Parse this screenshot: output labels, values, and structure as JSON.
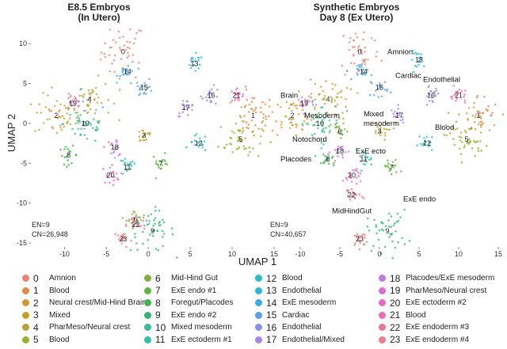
{
  "chart_data": [
    {
      "type": "scatter",
      "title": "E8.5 Embryos",
      "subtitle": "(In Utero)",
      "xlabel": "UMAP 1",
      "ylabel": "UMAP 2",
      "xlim": [
        -14,
        15
      ],
      "ylim": [
        -15.5,
        12.5
      ],
      "xticks": [
        -10,
        -5,
        0,
        5,
        10,
        15
      ],
      "yticks": [
        10,
        5,
        0,
        -5,
        -10,
        -15
      ],
      "stats": [
        "EN=9",
        "CN=26,948"
      ],
      "clusters": [
        {
          "id": 0,
          "x": -3.0,
          "y": 9.0
        },
        {
          "id": 1,
          "x": 12.5,
          "y": 1.0
        },
        {
          "id": 2,
          "x": -11.0,
          "y": 1.0
        },
        {
          "id": 3,
          "x": -0.5,
          "y": -1.5
        },
        {
          "id": 4,
          "x": -7.0,
          "y": 3.0
        },
        {
          "id": 5,
          "x": 11.0,
          "y": -2.0
        },
        {
          "id": 6,
          "x": -1.5,
          "y": -12.0
        },
        {
          "id": 7,
          "x": 1.5,
          "y": -5.0
        },
        {
          "id": 8,
          "x": -9.5,
          "y": -4.0
        },
        {
          "id": 9,
          "x": 0.5,
          "y": -13.5
        },
        {
          "id": 10,
          "x": -7.5,
          "y": 0.0
        },
        {
          "id": 11,
          "x": -2.5,
          "y": -5.5
        },
        {
          "id": 12,
          "x": 6.0,
          "y": -2.5
        },
        {
          "id": 13,
          "x": 5.5,
          "y": 7.5
        },
        {
          "id": 14,
          "x": -2.5,
          "y": 6.5
        },
        {
          "id": 15,
          "x": -0.5,
          "y": 4.5
        },
        {
          "id": 16,
          "x": 7.5,
          "y": 3.5
        },
        {
          "id": 17,
          "x": 4.5,
          "y": 2.0
        },
        {
          "id": 18,
          "x": -4.0,
          "y": -3.0
        },
        {
          "id": 19,
          "x": -9.0,
          "y": 2.5
        },
        {
          "id": 20,
          "x": -4.5,
          "y": -6.5
        },
        {
          "id": 21,
          "x": 10.5,
          "y": 3.5
        },
        {
          "id": 22,
          "x": -1.5,
          "y": -12.7
        },
        {
          "id": 23,
          "x": -3.0,
          "y": -14.5
        }
      ],
      "annotations": []
    },
    {
      "type": "scatter",
      "title": "Synthetic Embryos",
      "subtitle": "Day 8 (Ex Utero)",
      "xlabel": "UMAP 1",
      "ylabel": "",
      "xlim": [
        -14,
        15
      ],
      "ylim": [
        -15.5,
        12.5
      ],
      "xticks": [
        -10,
        -5,
        0,
        5,
        10,
        15
      ],
      "yticks": [],
      "stats": [
        "EN=9",
        "CN=40,657"
      ],
      "clusters": [
        {
          "id": 0,
          "x": -2.5,
          "y": 9.0
        },
        {
          "id": 1,
          "x": 12.5,
          "y": 1.0
        },
        {
          "id": 2,
          "x": -11.0,
          "y": 1.0
        },
        {
          "id": 3,
          "x": 0.0,
          "y": -1.0
        },
        {
          "id": 4,
          "x": -6.5,
          "y": 3.0
        },
        {
          "id": 5,
          "x": 11.0,
          "y": -2.0
        },
        {
          "id": 6,
          "x": -5.0,
          "y": -1.0
        },
        {
          "id": 7,
          "x": 1.5,
          "y": -5.5
        },
        {
          "id": 8,
          "x": -6.5,
          "y": -4.5
        },
        {
          "id": 9,
          "x": 1.0,
          "y": -13.5
        },
        {
          "id": 10,
          "x": -7.5,
          "y": 0.0
        },
        {
          "id": 11,
          "x": -2.0,
          "y": -4.5
        },
        {
          "id": 12,
          "x": 6.0,
          "y": -2.5
        },
        {
          "id": 13,
          "x": 5.0,
          "y": 8.0
        },
        {
          "id": 14,
          "x": -2.0,
          "y": 6.5
        },
        {
          "id": 15,
          "x": 0.0,
          "y": 4.5
        },
        {
          "id": 16,
          "x": 6.5,
          "y": 3.5
        },
        {
          "id": 17,
          "x": 2.5,
          "y": 1.0
        },
        {
          "id": 18,
          "x": -5.0,
          "y": -3.5
        },
        {
          "id": 19,
          "x": -9.5,
          "y": 2.5
        },
        {
          "id": 20,
          "x": -3.5,
          "y": -6.5
        },
        {
          "id": 21,
          "x": 10.0,
          "y": 3.5
        },
        {
          "id": 22,
          "x": -3.5,
          "y": -9.0
        },
        {
          "id": 23,
          "x": -2.5,
          "y": -14.5
        }
      ],
      "annotations": [
        {
          "text": "Amnion",
          "x": 1.0,
          "y": 9.0
        },
        {
          "text": "Cardiac",
          "x": 2.0,
          "y": 6.0
        },
        {
          "text": "Endothelial",
          "x": 5.5,
          "y": 5.5
        },
        {
          "text": "Brain",
          "x": -12.5,
          "y": 3.5
        },
        {
          "text": "Mesoderm",
          "x": -9.5,
          "y": 1.0
        },
        {
          "text": "Mixed",
          "x": -2.0,
          "y": 1.2
        },
        {
          "text": "mesoderm",
          "x": -2.0,
          "y": 0.0
        },
        {
          "text": "Blood",
          "x": 7.0,
          "y": -0.5
        },
        {
          "text": "Notochord",
          "x": -11.0,
          "y": -2.0
        },
        {
          "text": "ExE ecto",
          "x": -3.0,
          "y": -3.5
        },
        {
          "text": "Placodes",
          "x": -12.5,
          "y": -4.5
        },
        {
          "text": "ExE endo",
          "x": 3.0,
          "y": -9.5
        },
        {
          "text": "MidHindGut",
          "x": -6.0,
          "y": -11.0
        }
      ]
    }
  ],
  "legend": [
    {
      "num": "0",
      "name": "Amnion",
      "color": "#E8837A"
    },
    {
      "num": "1",
      "name": "Blood",
      "color": "#E2894A"
    },
    {
      "num": "2",
      "name": "Neural crest/Mid-Hind Brain",
      "color": "#D39A34"
    },
    {
      "num": "3",
      "name": "Mixed",
      "color": "#C4A02A"
    },
    {
      "num": "4",
      "name": "PharMeso/Neural crest",
      "color": "#B7A238"
    },
    {
      "num": "5",
      "name": "Blood",
      "color": "#9AAE2E"
    },
    {
      "num": "6",
      "name": "Mid-Hind Gut",
      "color": "#7FB13A"
    },
    {
      "num": "7",
      "name": "ExE endo #1",
      "color": "#5DB543"
    },
    {
      "num": "8",
      "name": "Foregut/Placodes",
      "color": "#3FB34F"
    },
    {
      "num": "9",
      "name": "ExE endo #2",
      "color": "#36B476"
    },
    {
      "num": "10",
      "name": "Mixed mesoderm",
      "color": "#3CB995"
    },
    {
      "num": "11",
      "name": "ExE ectoderm #1",
      "color": "#34BCAE"
    },
    {
      "num": "12",
      "name": "Blood",
      "color": "#2DBCC2"
    },
    {
      "num": "13",
      "name": "Endothelial",
      "color": "#2EB6D5"
    },
    {
      "num": "14",
      "name": "ExE mesoderm",
      "color": "#3DAAE3"
    },
    {
      "num": "15",
      "name": "Cardiac",
      "color": "#5B9CEB"
    },
    {
      "num": "16",
      "name": "Endothelial",
      "color": "#8A8EEC"
    },
    {
      "num": "17",
      "name": "Endothelial/Mixed",
      "color": "#A883E8"
    },
    {
      "num": "18",
      "name": "Placodes/ExE mesoderm",
      "color": "#C277E0"
    },
    {
      "num": "19",
      "name": "PharMeso/Neural crest",
      "color": "#D56FD3"
    },
    {
      "num": "20",
      "name": "ExE ectoderm #2",
      "color": "#E26CC1"
    },
    {
      "num": "21",
      "name": "Blood",
      "color": "#E870AE"
    },
    {
      "num": "22",
      "name": "ExE endoderm #3",
      "color": "#EC7597"
    },
    {
      "num": "23",
      "name": "ExE endoderm #4",
      "color": "#EC7D86"
    }
  ]
}
